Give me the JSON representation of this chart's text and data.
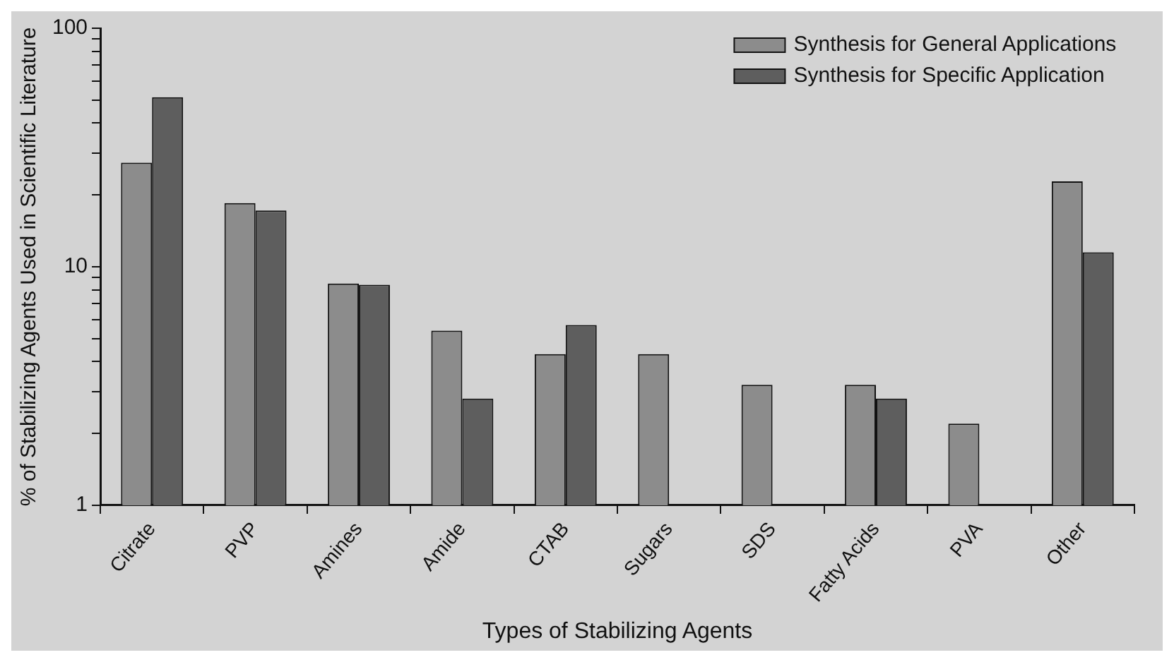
{
  "chart_data": {
    "type": "bar",
    "xlabel": "Types of Stabilizing Agents",
    "ylabel": "% of Stabilizing Agents Used in Scientific Literature",
    "categories": [
      "Citrate",
      "PVP",
      "Amines",
      "Amide",
      "CTAB",
      "Sugars",
      "SDS",
      "Fatty Acids",
      "PVA",
      "Other"
    ],
    "series": [
      {
        "name": "Synthesis for General Applications",
        "color": "#8c8c8c",
        "values": [
          27.3,
          18.5,
          8.5,
          5.4,
          4.3,
          4.3,
          3.2,
          3.2,
          2.2,
          22.8
        ]
      },
      {
        "name": "Synthesis for Specific Application",
        "color": "#5e5e5e",
        "values": [
          51.4,
          17.2,
          8.4,
          2.8,
          5.7,
          null,
          null,
          2.8,
          null,
          11.5
        ]
      }
    ],
    "log": "y",
    "ylim": [
      1,
      100
    ],
    "yticks": [
      1,
      {
        "value": 2,
        "label": null
      },
      {
        "value": 3,
        "label": null
      },
      {
        "value": 4,
        "label": null
      },
      {
        "value": 5,
        "label": null
      },
      {
        "value": 6,
        "label": null
      },
      {
        "value": 7,
        "label": null
      },
      {
        "value": 8,
        "label": null
      },
      {
        "value": 9,
        "label": null
      },
      10,
      {
        "value": 20,
        "label": null
      },
      {
        "value": 30,
        "label": null
      },
      {
        "value": 40,
        "label": null
      },
      {
        "value": 50,
        "label": null
      },
      {
        "value": 60,
        "label": null
      },
      {
        "value": 70,
        "label": null
      },
      {
        "value": 80,
        "label": null
      },
      {
        "value": 90,
        "label": null
      },
      100
    ],
    "grid": false,
    "legend": "top right"
  }
}
